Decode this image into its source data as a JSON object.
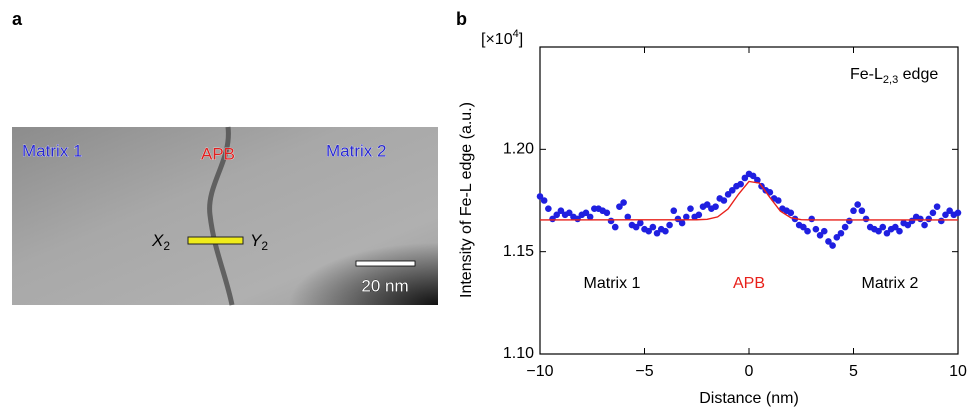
{
  "panel_labels": [
    "a",
    "b"
  ],
  "panel_a": {
    "labels": [
      "Matrix 1",
      "APB",
      "Matrix 2"
    ],
    "start": {
      "text": "X",
      "sub": "2"
    },
    "end": {
      "text": "Y",
      "sub": "2"
    },
    "scale_bar": "20 nm"
  },
  "chart_data": {
    "type": "scatter",
    "x_label": "Distance (nm)",
    "y_label": "Intensity of Fe-L edge (a.u.)",
    "y_multiplier": {
      "text": "[×10",
      "sup": "4",
      "close": "]"
    },
    "title": {
      "text": "Fe-L",
      "sub": "2,3",
      "suffix": " edge"
    },
    "annotations": [
      {
        "text": "Matrix 1",
        "color": "#000000"
      },
      {
        "text": "APB",
        "color": "#e8201a"
      },
      {
        "text": "Matrix 2",
        "color": "#000000"
      }
    ],
    "xlim": [
      -10,
      10
    ],
    "xticks": [
      {
        "value": -10,
        "label": "−10"
      },
      {
        "value": -5,
        "label": "−5"
      },
      0,
      5,
      10
    ],
    "ylim": [
      1.1,
      1.25
    ],
    "yticks": [
      {
        "value": 1.1,
        "label": "1.10"
      },
      1.15,
      {
        "value": 1.2,
        "label": "1.20"
      }
    ],
    "series": [
      {
        "type": "scatter",
        "color": "#1f1fe0",
        "x": [
          -10,
          -9.8,
          -9.6,
          -9.4,
          -9.2,
          -9,
          -8.8,
          -8.6,
          -8.4,
          -8.2,
          -8,
          -7.8,
          -7.6,
          -7.4,
          -7.2,
          -7,
          -6.8,
          -6.6,
          -6.4,
          -6.2,
          -6,
          -5.8,
          -5.6,
          -5.4,
          -5.2,
          -5,
          -4.8,
          -4.6,
          -4.4,
          -4.2,
          -4,
          -3.8,
          -3.6,
          -3.4,
          -3.2,
          -3,
          -2.8,
          -2.6,
          -2.4,
          -2.2,
          -2,
          -1.8,
          -1.6,
          -1.4,
          -1.2,
          -1,
          -0.8,
          -0.6,
          -0.4,
          -0.2,
          0,
          0.2,
          0.4,
          0.6,
          0.8,
          1,
          1.2,
          1.4,
          1.6,
          1.8,
          2,
          2.2,
          2.4,
          2.6,
          2.8,
          3,
          3.2,
          3.4,
          3.6,
          3.8,
          4,
          4.2,
          4.4,
          4.6,
          4.8,
          5,
          5.2,
          5.4,
          5.6,
          5.8,
          6,
          6.2,
          6.4,
          6.6,
          6.8,
          7,
          7.2,
          7.4,
          7.6,
          7.8,
          8,
          8.2,
          8.4,
          8.6,
          8.8,
          9,
          9.2,
          9.4,
          9.6,
          9.8,
          10
        ],
        "values": [
          1.177,
          1.175,
          1.171,
          1.166,
          1.168,
          1.17,
          1.168,
          1.169,
          1.167,
          1.166,
          1.168,
          1.169,
          1.167,
          1.171,
          1.171,
          1.17,
          1.169,
          1.165,
          1.162,
          1.172,
          1.174,
          1.167,
          1.163,
          1.162,
          1.164,
          1.161,
          1.16,
          1.162,
          1.159,
          1.161,
          1.16,
          1.163,
          1.17,
          1.166,
          1.164,
          1.167,
          1.171,
          1.167,
          1.168,
          1.172,
          1.173,
          1.171,
          1.172,
          1.176,
          1.175,
          1.178,
          1.18,
          1.182,
          1.183,
          1.186,
          1.188,
          1.187,
          1.185,
          1.182,
          1.18,
          1.179,
          1.176,
          1.175,
          1.171,
          1.17,
          1.169,
          1.166,
          1.163,
          1.162,
          1.16,
          1.166,
          1.161,
          1.158,
          1.16,
          1.155,
          1.153,
          1.157,
          1.159,
          1.162,
          1.165,
          1.17,
          1.173,
          1.17,
          1.166,
          1.162,
          1.161,
          1.16,
          1.162,
          1.159,
          1.161,
          1.162,
          1.16,
          1.164,
          1.163,
          1.165,
          1.167,
          1.166,
          1.163,
          1.166,
          1.169,
          1.172,
          1.165,
          1.168,
          1.17,
          1.168,
          1.169
        ]
      },
      {
        "type": "line",
        "color": "#e8201a",
        "x": [
          -10,
          -2.5,
          -2,
          -1.5,
          -1,
          -0.5,
          0,
          0.5,
          1,
          1.5,
          2,
          2.5,
          3,
          10
        ],
        "values": [
          1.1655,
          1.1656,
          1.1658,
          1.167,
          1.1709,
          1.1781,
          1.1843,
          1.1835,
          1.1765,
          1.1698,
          1.1666,
          1.1656,
          1.1655,
          1.1655
        ]
      }
    ]
  }
}
